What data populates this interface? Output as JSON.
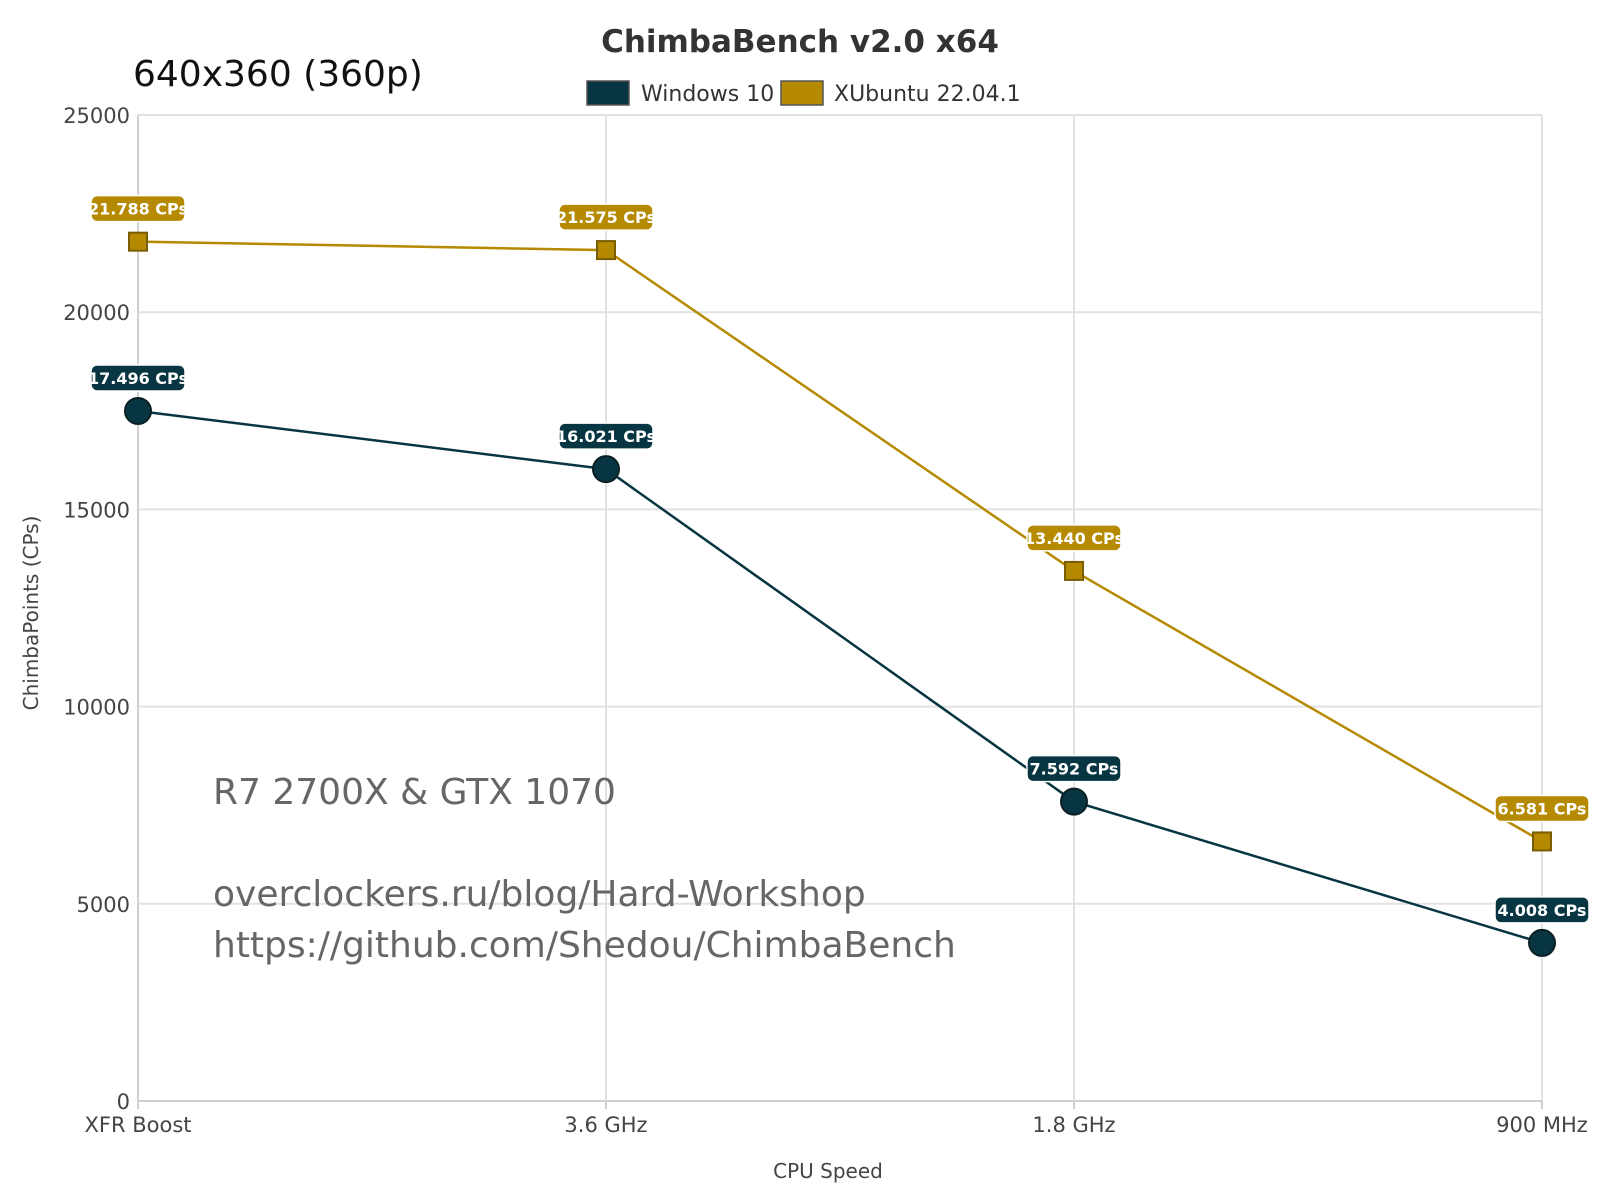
{
  "chart_data": {
    "type": "line",
    "title": "ChimbaBench v2.0 x64",
    "subtitle": "640x360 (360p)",
    "xlabel": "CPU Speed",
    "ylabel": "ChimbaPoints (CPs)",
    "categories": [
      "XFR Boost",
      "3.6 GHz",
      "1.8 GHz",
      "900 MHz"
    ],
    "ylim": [
      0,
      25000
    ],
    "yticks": [
      "0",
      "5000",
      "10000",
      "15000",
      "20000",
      "25000"
    ],
    "grid": true,
    "legend_position": "top-center",
    "series": [
      {
        "name": "Windows 10",
        "color": "#073642",
        "marker": "circle",
        "values": [
          17496,
          16021,
          7592,
          4008
        ],
        "labels": [
          "17.496 CPs",
          "16.021 CPs",
          "7.592 CPs",
          "4.008 CPs"
        ]
      },
      {
        "name": "XUbuntu 22.04.1",
        "color": "#b58900",
        "marker": "square",
        "values": [
          21788,
          21575,
          13440,
          6581
        ],
        "labels": [
          "21.788 CPs",
          "21.575 CPs",
          "13.440 CPs",
          "6.581 CPs"
        ]
      }
    ],
    "annotations": [
      "R7 2700X & GTX 1070",
      "overclockers.ru/blog/Hard-Workshop",
      "https://github.com/Shedou/ChimbaBench"
    ]
  }
}
